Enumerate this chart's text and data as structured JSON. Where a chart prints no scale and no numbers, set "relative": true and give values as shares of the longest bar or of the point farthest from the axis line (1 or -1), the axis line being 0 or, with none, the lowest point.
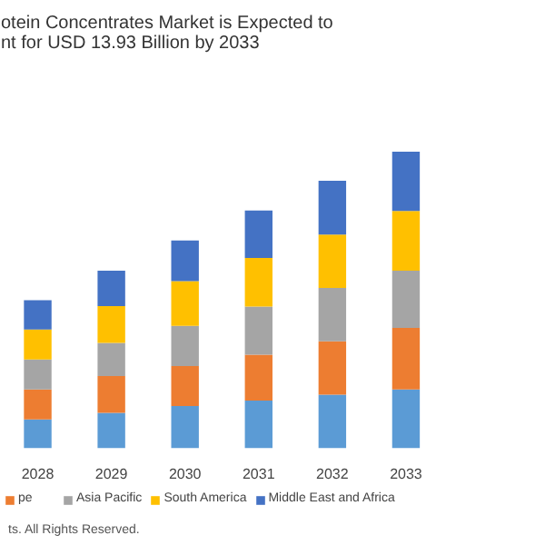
{
  "chart_data": {
    "type": "bar",
    "stacked": true,
    "relative": true,
    "title": "otein Concentrates Market is Expected to\nnt for USD 13.93 Billion by 2033",
    "categories": [
      "2028",
      "2029",
      "2030",
      "2031",
      "2032",
      "2033"
    ],
    "series": [
      {
        "color": "#5b9bd5",
        "values": [
          0.097,
          0.119,
          0.142,
          0.16,
          0.18,
          0.198
        ]
      },
      {
        "name": "pe",
        "color": "#ed7d31",
        "values": [
          0.101,
          0.124,
          0.135,
          0.155,
          0.18,
          0.207
        ]
      },
      {
        "name": "Asia Pacific",
        "color": "#a5a5a5",
        "values": [
          0.101,
          0.112,
          0.135,
          0.162,
          0.18,
          0.193
        ]
      },
      {
        "name": "South America",
        "color": "#ffc000",
        "values": [
          0.101,
          0.124,
          0.151,
          0.164,
          0.18,
          0.202
        ]
      },
      {
        "name": "Middle East and Africa",
        "color": "#4472c4",
        "values": [
          0.099,
          0.119,
          0.137,
          0.16,
          0.182,
          0.2
        ]
      }
    ],
    "legend": "bottom",
    "annotations": [
      "ts. All Rights Reserved."
    ]
  }
}
